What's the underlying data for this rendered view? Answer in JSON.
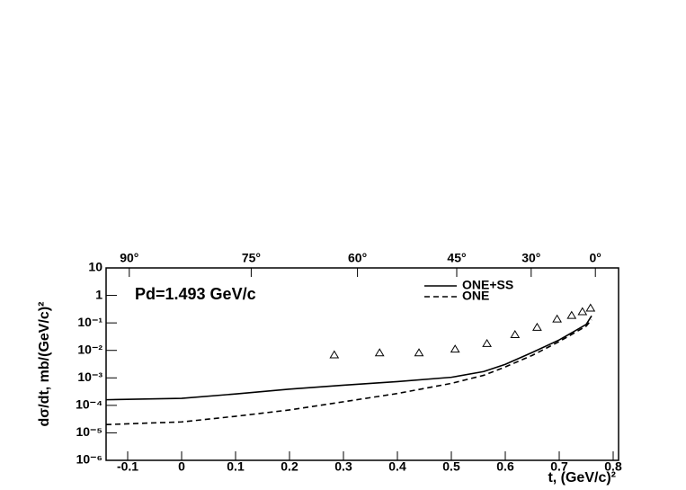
{
  "chart_data": {
    "type": "line",
    "annotation": "Pd=1.493 GeV/c",
    "x_label": "t, (GeV/c)²",
    "y_label": "dσ/dt, mb/(GeV/c)²",
    "xlim": [
      -0.14,
      0.81
    ],
    "ylim": [
      1e-06,
      10
    ],
    "log_y": true,
    "xticks": [
      -0.1,
      0,
      0.1,
      0.2,
      0.3,
      0.4,
      0.5,
      0.6,
      0.7,
      0.8
    ],
    "yticks": [
      {
        "value": 1e-06,
        "label": "10⁻⁶"
      },
      {
        "value": 1e-05,
        "label": "10⁻⁵"
      },
      {
        "value": 0.0001,
        "label": "10⁻⁴"
      },
      {
        "value": 0.001,
        "label": "10⁻³"
      },
      {
        "value": 0.01,
        "label": "10⁻²"
      },
      {
        "value": 0.1,
        "label": "10⁻¹"
      },
      1,
      10
    ],
    "top_axis": {
      "labels": [
        "90°",
        "75°",
        "60°",
        "45°",
        "30°",
        "0°"
      ],
      "positions": [
        -0.097,
        0.129,
        0.326,
        0.51,
        0.648,
        0.767
      ]
    },
    "legend": "top-right",
    "series": [
      {
        "name": "ONE+SS",
        "style": "solid",
        "color": "#000000",
        "x": [
          -0.14,
          0,
          0.1,
          0.2,
          0.3,
          0.4,
          0.5,
          0.56,
          0.6,
          0.65,
          0.7,
          0.75,
          0.76
        ],
        "values": [
          0.00016,
          0.00018,
          0.00026,
          0.00039,
          0.00054,
          0.00073,
          0.00105,
          0.0017,
          0.0031,
          0.0084,
          0.024,
          0.088,
          0.18
        ]
      },
      {
        "name": "ONE",
        "style": "dashed",
        "color": "#000000",
        "x": [
          -0.14,
          0,
          0.1,
          0.2,
          0.3,
          0.4,
          0.5,
          0.56,
          0.6,
          0.65,
          0.7,
          0.75,
          0.76
        ],
        "values": [
          2e-05,
          2.5e-05,
          4e-05,
          6.8e-05,
          0.000135,
          0.00027,
          0.00063,
          0.00124,
          0.0025,
          0.0066,
          0.021,
          0.076,
          0.13
        ]
      },
      {
        "style": "triangle",
        "color": "#000000",
        "x": [
          0.283,
          0.367,
          0.44,
          0.507,
          0.566,
          0.618,
          0.659,
          0.696,
          0.723,
          0.743,
          0.758
        ],
        "values": [
          0.007,
          0.0083,
          0.0083,
          0.0113,
          0.018,
          0.038,
          0.07,
          0.14,
          0.19,
          0.26,
          0.35
        ]
      }
    ]
  }
}
